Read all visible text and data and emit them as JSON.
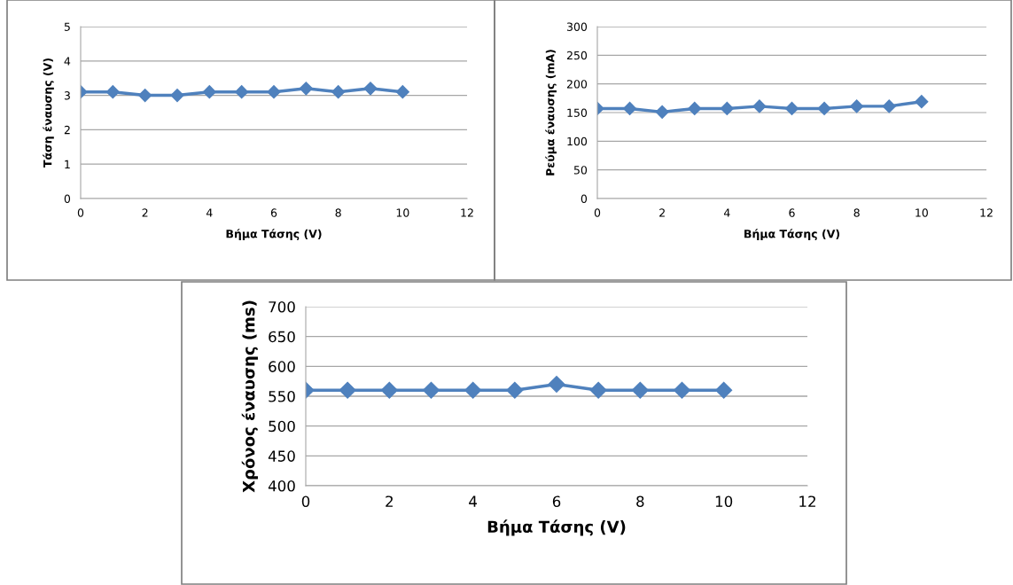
{
  "chart_data": [
    {
      "type": "line",
      "xlabel": "Βήμα Τάσης (V)",
      "ylabel": "Τάση έναυσης (V)",
      "x": [
        0,
        1,
        2,
        3,
        4,
        5,
        6,
        7,
        8,
        9,
        10
      ],
      "series": [
        {
          "color": "#4f81bd",
          "values": [
            3.1,
            3.1,
            3.0,
            3.0,
            3.1,
            3.1,
            3.1,
            3.2,
            3.1,
            3.2,
            3.1
          ]
        }
      ],
      "xlim": [
        0,
        12
      ],
      "xticks": [
        0,
        2,
        4,
        6,
        8,
        10,
        12
      ],
      "ylim": [
        0,
        5
      ],
      "yticks": [
        0,
        1,
        2,
        3,
        4,
        5
      ],
      "grid": "y",
      "marker": "diamond",
      "line_style": "solid"
    },
    {
      "type": "line",
      "xlabel": "Βήμα Τάσης (V)",
      "ylabel": "Ρεύμα έναυσης (mA)",
      "x": [
        0,
        1,
        2,
        3,
        4,
        5,
        6,
        7,
        8,
        9,
        10
      ],
      "series": [
        {
          "color": "#4f81bd",
          "values": [
            157,
            157,
            151,
            157,
            157,
            161,
            157,
            157,
            161,
            161,
            169
          ]
        }
      ],
      "xlim": [
        0,
        12
      ],
      "xticks": [
        0,
        2,
        4,
        6,
        8,
        10,
        12
      ],
      "ylim": [
        0,
        300
      ],
      "yticks": [
        0,
        50,
        100,
        150,
        200,
        250,
        300
      ],
      "grid": "y",
      "marker": "diamond",
      "line_style": "solid"
    },
    {
      "type": "line",
      "xlabel": "Βήμα Τάσης (V)",
      "ylabel": "Χρόνος έναυσης (ms)",
      "x": [
        0,
        1,
        2,
        3,
        4,
        5,
        6,
        7,
        8,
        9,
        10
      ],
      "series": [
        {
          "color": "#4f81bd",
          "values": [
            560,
            560,
            560,
            560,
            560,
            560,
            570,
            560,
            560,
            560,
            560
          ]
        }
      ],
      "xlim": [
        0,
        12
      ],
      "xticks": [
        0,
        2,
        4,
        6,
        8,
        10,
        12
      ],
      "ylim": [
        400,
        700
      ],
      "yticks": [
        400,
        450,
        500,
        550,
        600,
        650,
        700
      ],
      "grid": "y",
      "marker": "diamond",
      "line_style": "solid"
    }
  ]
}
